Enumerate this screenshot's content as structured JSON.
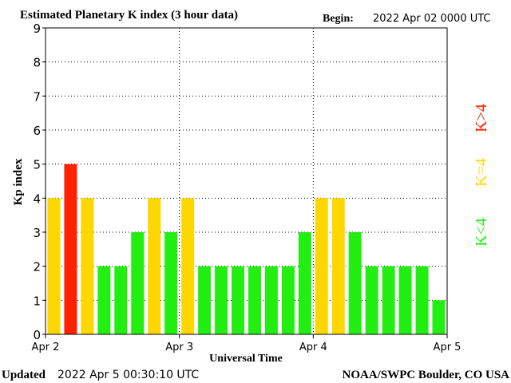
{
  "header": {
    "title": "Estimated Planetary K index (3 hour data)",
    "begin_label": "Begin:",
    "begin_value": "2022 Apr 02 0000 UTC"
  },
  "footer": {
    "updated_label": "Updated",
    "updated_value": "2022 Apr  5 00:30:10 UTC",
    "source": "NOAA/SWPC Boulder, CO USA"
  },
  "legend": {
    "gt4": "K>4",
    "eq4": "K=4",
    "lt4": "K<4"
  },
  "colors": {
    "lt4": "#22ee11",
    "eq4": "#ffd700",
    "gt4": "#ff2200",
    "axis": "#000000",
    "grid": "#000000",
    "background": "#ffffff"
  },
  "chart_data": {
    "type": "bar",
    "title": "Estimated Planetary K index (3 hour data)",
    "xlabel": "Universal Time",
    "ylabel": "Kp index",
    "ylim": [
      0,
      9
    ],
    "yticks": [
      0,
      1,
      2,
      3,
      4,
      5,
      6,
      7,
      8,
      9
    ],
    "xticks": [
      "Apr 2",
      "Apr 3",
      "Apr 4",
      "Apr 5"
    ],
    "grid": true,
    "values": [
      4,
      5,
      4,
      2,
      2,
      3,
      4,
      3,
      4,
      2,
      2,
      2,
      2,
      2,
      2,
      3,
      4,
      4,
      3,
      2,
      2,
      2,
      2,
      1
    ]
  }
}
